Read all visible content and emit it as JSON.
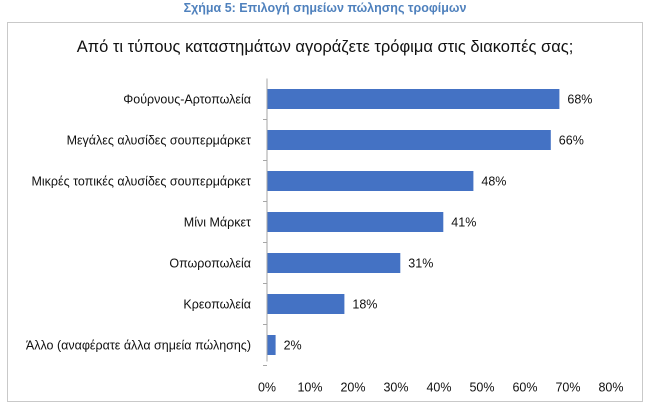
{
  "figure_caption": "Σχήμα 5: Επιλογή σημείων πώλησης τροφίμων",
  "colors": {
    "bar": "#4472c4",
    "caption": "#4f81bd",
    "axis": "#a6a6a6"
  },
  "chart_data": {
    "type": "bar",
    "orientation": "horizontal",
    "title": "Από τι τύπους καταστημάτων αγοράζετε τρόφιμα στις διακοπές σας;",
    "categories": [
      "Φούρνους-Αρτοπωλεία",
      "Μεγάλες αλυσίδες σουπερμάρκετ",
      "Μικρές τοπικές αλυσίδες σουπερμάρκετ",
      "Μίνι Μάρκετ",
      "Οπωροπωλεία",
      "Κρεοπωλεία",
      "Άλλο (αναφέρατε άλλα σημεία πώλησης)"
    ],
    "values": [
      68,
      66,
      48,
      41,
      31,
      18,
      2
    ],
    "value_labels": [
      "68%",
      "66%",
      "48%",
      "41%",
      "31%",
      "18%",
      "2%"
    ],
    "xlim": [
      0,
      80
    ],
    "xticks": [
      0,
      10,
      20,
      30,
      40,
      50,
      60,
      70,
      80
    ],
    "xtick_labels": [
      "0%",
      "10%",
      "20%",
      "30%",
      "40%",
      "50%",
      "60%",
      "70%",
      "80%"
    ],
    "xlabel": "",
    "ylabel": "",
    "grid": false,
    "legend": "none"
  }
}
